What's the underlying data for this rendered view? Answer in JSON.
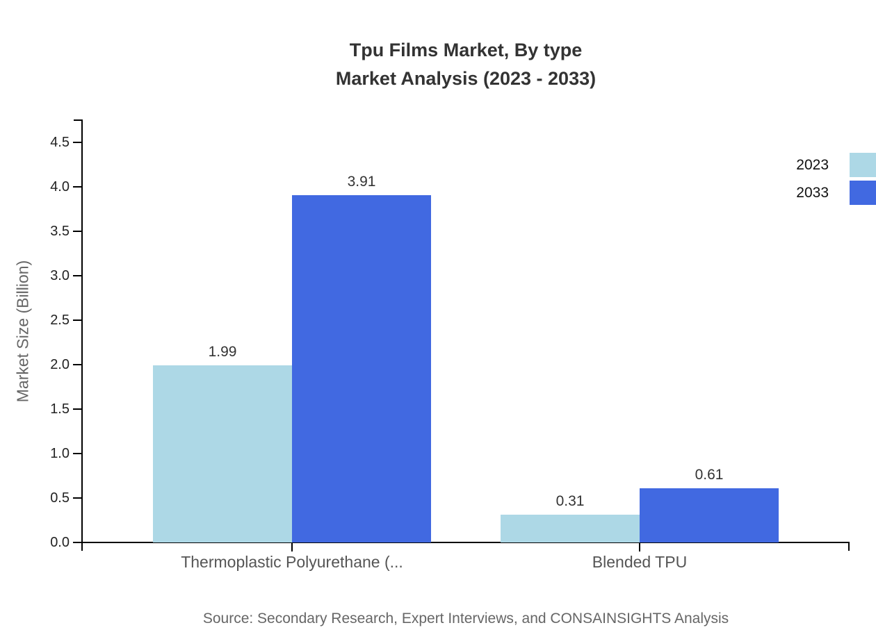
{
  "title": {
    "line1": "Tpu Films Market, By type",
    "line2": "Market Analysis (2023 - 2033)"
  },
  "chart_data": {
    "type": "bar",
    "title": "Tpu Films Market, By type",
    "subtitle": "Market Analysis (2023 - 2033)",
    "categories": [
      "Thermoplastic Polyurethane (...",
      "Blended TPU"
    ],
    "series": [
      {
        "name": "2023",
        "color": "#ADD8E6",
        "values": [
          1.99,
          0.31
        ]
      },
      {
        "name": "2033",
        "color": "#4169E1",
        "values": [
          3.91,
          0.61
        ]
      }
    ],
    "xlabel": "",
    "ylabel": "Market Size (Billion)",
    "ylim": [
      0,
      4.5
    ],
    "ytick_step": 0.5,
    "ytick_decimals": 1,
    "value_label_decimals": 2,
    "grid": false,
    "legend_position": "top-right",
    "axis_color": "#000000"
  },
  "source": {
    "text": "Source: Secondary Research, Expert Interviews, and CONSAINSIGHTS Analysis"
  }
}
